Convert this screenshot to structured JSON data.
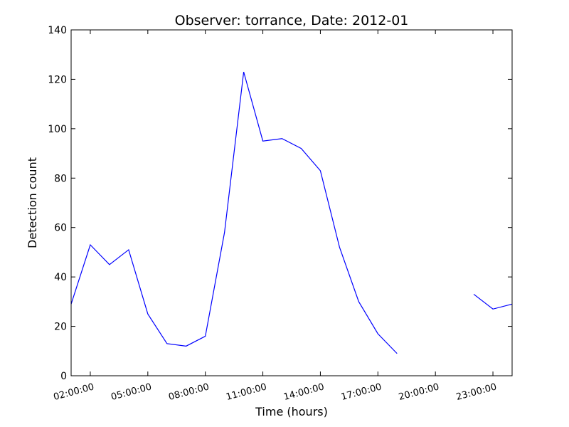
{
  "chart_data": {
    "type": "line",
    "title": "Observer: torrance, Date: 2012-01",
    "xlabel": "Time (hours)",
    "ylabel": "Detection count",
    "ylim": [
      0,
      140
    ],
    "yticks": [
      0,
      20,
      40,
      60,
      80,
      100,
      120,
      140
    ],
    "xlim": [
      "01:00:00",
      "24:00:00"
    ],
    "xticks": [
      "02:00:00",
      "05:00:00",
      "08:00:00",
      "11:00:00",
      "14:00:00",
      "17:00:00",
      "20:00:00",
      "23:00:00"
    ],
    "grid": false,
    "line_color": "#0000ff",
    "series": [
      {
        "x": [
          "01:00:00",
          "02:00:00",
          "03:00:00",
          "04:00:00",
          "05:00:00",
          "06:00:00",
          "07:00:00",
          "08:00:00",
          "09:00:00",
          "10:00:00",
          "11:00:00",
          "12:00:00",
          "13:00:00",
          "14:00:00",
          "15:00:00",
          "16:00:00",
          "17:00:00",
          "18:00:00",
          "19:00:00",
          "20:00:00",
          "21:00:00",
          "22:00:00",
          "23:00:00",
          "24:00:00"
        ],
        "values": [
          29,
          53,
          45,
          51,
          25,
          13,
          12,
          16,
          58,
          123,
          95,
          96,
          92,
          83,
          52,
          30,
          17,
          9,
          null,
          null,
          null,
          33,
          27,
          29
        ]
      }
    ]
  }
}
